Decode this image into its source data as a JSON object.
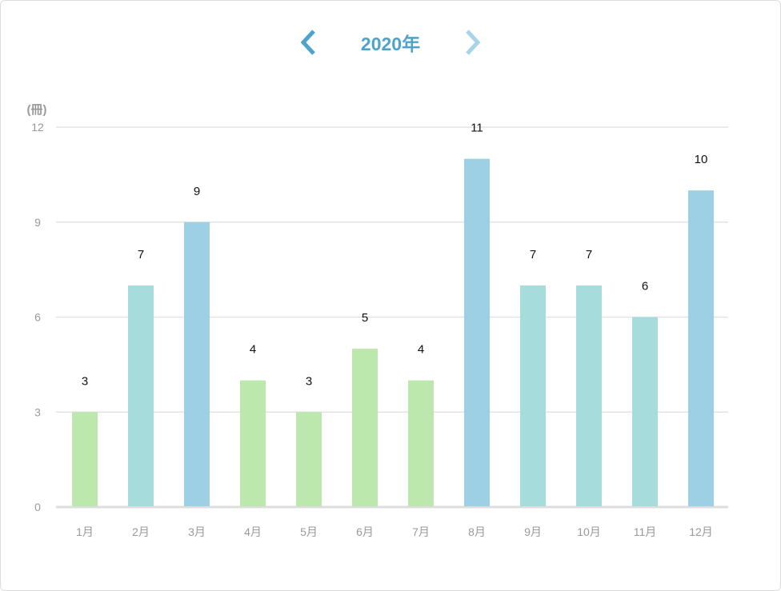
{
  "header": {
    "year_label": "2020年",
    "prev_icon": "chevron-left-icon",
    "next_icon": "chevron-right-icon"
  },
  "chart_data": {
    "type": "bar",
    "title": "2020年",
    "ylabel": "(冊)",
    "xlabel": "",
    "ylim": [
      0,
      12
    ],
    "yticks": [
      "0",
      "3",
      "6",
      "9",
      "12"
    ],
    "grid": true,
    "categories": [
      "1月",
      "2月",
      "3月",
      "4月",
      "5月",
      "6月",
      "7月",
      "8月",
      "9月",
      "10月",
      "11月",
      "12月"
    ],
    "values": [
      3,
      7,
      9,
      4,
      3,
      5,
      4,
      11,
      7,
      7,
      6,
      10
    ],
    "colors": [
      "#bde8ad",
      "#a6dcdc",
      "#9dcfe5",
      "#bde8ad",
      "#bde8ad",
      "#bde8ad",
      "#bde8ad",
      "#9dcfe5",
      "#a6dcdc",
      "#a6dcdc",
      "#a6dcdc",
      "#9dcfe5"
    ]
  }
}
